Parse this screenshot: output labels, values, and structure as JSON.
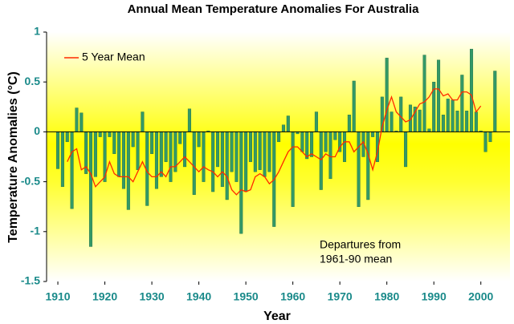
{
  "chart_data": {
    "type": "bar",
    "title": "Annual Mean Temperature Anomalies For Australia",
    "x_label": "Year",
    "y_label": "Temperature Anomalies (°C)",
    "annotation": [
      "Departures from",
      "1961-90 mean"
    ],
    "x": [
      1910,
      1911,
      1912,
      1913,
      1914,
      1915,
      1916,
      1917,
      1918,
      1919,
      1920,
      1921,
      1922,
      1923,
      1924,
      1925,
      1926,
      1927,
      1928,
      1929,
      1930,
      1931,
      1932,
      1933,
      1934,
      1935,
      1936,
      1937,
      1938,
      1939,
      1940,
      1941,
      1942,
      1943,
      1944,
      1945,
      1946,
      1947,
      1948,
      1949,
      1950,
      1951,
      1952,
      1953,
      1954,
      1955,
      1956,
      1957,
      1958,
      1959,
      1960,
      1961,
      1962,
      1963,
      1964,
      1965,
      1966,
      1967,
      1968,
      1969,
      1970,
      1971,
      1972,
      1973,
      1974,
      1975,
      1976,
      1977,
      1978,
      1979,
      1980,
      1981,
      1982,
      1983,
      1984,
      1985,
      1986,
      1987,
      1988,
      1989,
      1990,
      1991,
      1992,
      1993,
      1994,
      1995,
      1996,
      1997,
      1998,
      1999,
      2000,
      2001,
      2002,
      2003
    ],
    "values": [
      -0.37,
      -0.55,
      -0.1,
      -0.77,
      0.24,
      0.19,
      -0.42,
      -1.15,
      -0.45,
      -0.05,
      -0.5,
      -0.05,
      -0.22,
      -0.45,
      -0.57,
      -0.78,
      -0.15,
      -0.38,
      0.2,
      -0.74,
      -0.22,
      -0.57,
      -0.45,
      -0.3,
      -0.5,
      -0.4,
      -0.12,
      -0.35,
      0.23,
      -0.63,
      -0.15,
      -0.5,
      0.01,
      -0.6,
      -0.35,
      -0.55,
      -0.68,
      -0.4,
      -0.5,
      -1.02,
      -0.6,
      -0.3,
      -0.4,
      -0.38,
      -0.45,
      -0.4,
      -0.95,
      -0.1,
      0.07,
      0.16,
      -0.75,
      -0.02,
      -0.2,
      -0.27,
      -0.25,
      0.2,
      -0.58,
      -0.2,
      -0.47,
      -0.08,
      -0.2,
      -0.3,
      0.17,
      0.51,
      -0.75,
      -0.25,
      -0.68,
      -0.05,
      -0.3,
      0.35,
      0.74,
      0.2,
      0.01,
      0.35,
      -0.35,
      0.27,
      0.25,
      0.22,
      0.77,
      0.03,
      0.5,
      0.72,
      0.17,
      0.33,
      0.32,
      0.21,
      0.57,
      0.21,
      0.83,
      0.2,
      0.01,
      -0.2,
      -0.1,
      0.61
    ],
    "color": "#339966",
    "series": [
      {
        "name": "5 Year Mean",
        "color": "#ff2a00",
        "values": [
          null,
          null,
          -0.3,
          -0.2,
          -0.17,
          -0.38,
          -0.35,
          -0.42,
          -0.55,
          -0.5,
          -0.45,
          -0.3,
          -0.42,
          -0.45,
          -0.45,
          -0.45,
          -0.5,
          -0.4,
          -0.3,
          -0.4,
          -0.45,
          -0.45,
          -0.4,
          -0.45,
          -0.35,
          -0.35,
          -0.3,
          -0.25,
          -0.3,
          -0.35,
          -0.4,
          -0.35,
          -0.38,
          -0.4,
          -0.45,
          -0.4,
          -0.45,
          -0.58,
          -0.63,
          -0.58,
          -0.6,
          -0.58,
          -0.45,
          -0.42,
          -0.45,
          -0.52,
          -0.48,
          -0.4,
          -0.3,
          -0.2,
          -0.15,
          -0.15,
          -0.2,
          -0.25,
          -0.22,
          -0.25,
          -0.28,
          -0.22,
          -0.25,
          -0.25,
          -0.15,
          -0.1,
          -0.1,
          -0.2,
          -0.15,
          -0.1,
          -0.22,
          -0.38,
          -0.2,
          0.05,
          0.22,
          0.35,
          0.2,
          0.15,
          0.1,
          0.12,
          0.2,
          0.28,
          0.3,
          0.35,
          0.43,
          0.43,
          0.36,
          0.38,
          0.32,
          0.32,
          0.4,
          0.4,
          0.37,
          0.2,
          0.26,
          null,
          null,
          null
        ]
      }
    ],
    "xlim": [
      1907.6,
      2006.2
    ],
    "xticks": [
      1910,
      1920,
      1930,
      1940,
      1950,
      1960,
      1970,
      1980,
      1990,
      2000
    ],
    "ylim": [
      -1.5,
      1
    ],
    "yticks": [
      1,
      0.5,
      0,
      -0.5,
      -1,
      -1.5
    ],
    "legend": "upper left"
  }
}
